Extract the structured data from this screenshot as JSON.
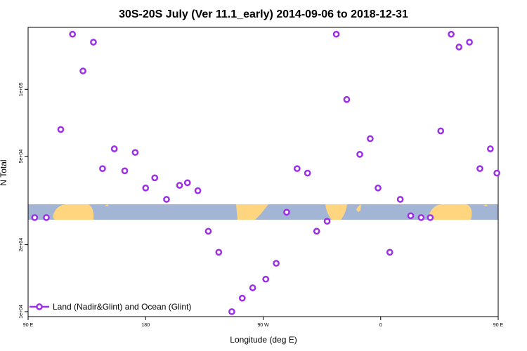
{
  "chart_data": {
    "type": "scatter",
    "title": "30S-20S July (Ver 11.1_early)   2014-09-06 to 2018-12-31",
    "xlabel": "Longitude (deg E)",
    "ylabel": "N Total",
    "x_axis_range": [
      90,
      450
    ],
    "y_scale": "log",
    "ylim": [
      9500,
      190000
    ],
    "x_ticks": [
      {
        "value": 90,
        "label": "90 E"
      },
      {
        "value": 180,
        "label": "180"
      },
      {
        "value": 270,
        "label": "90 W"
      },
      {
        "value": 360,
        "label": "0"
      },
      {
        "value": 450,
        "label": "90 E"
      }
    ],
    "y_ticks": [
      {
        "value": 10000,
        "label": "1e+04"
      },
      {
        "value": 20000,
        "label": "2e+04"
      },
      {
        "value": 50000,
        "label": "5e+04"
      },
      {
        "value": 100000,
        "label": "1e+05"
      }
    ],
    "series": [
      {
        "name": "Land (Nadir&Glint) and Ocean (Glint)",
        "color": "#9B30E8",
        "x": [
          95,
          104,
          115,
          124,
          132,
          140,
          147,
          156,
          164,
          172,
          180,
          187,
          196,
          206,
          212,
          220,
          228,
          236,
          246,
          254,
          262,
          272,
          280,
          288,
          296,
          304,
          311,
          319,
          326,
          334,
          344,
          352,
          358,
          367,
          375,
          383,
          391,
          398,
          406,
          414,
          420,
          428,
          436,
          444,
          449
        ],
        "y": [
          26500,
          26500,
          66000,
          177000,
          121000,
          163000,
          44000,
          54000,
          43000,
          52000,
          36000,
          40000,
          32000,
          37000,
          38000,
          35000,
          23000,
          18500,
          10000,
          11500,
          12800,
          14000,
          16500,
          28000,
          44000,
          42000,
          23000,
          25500,
          177000,
          90000,
          51000,
          60000,
          36000,
          18500,
          32000,
          27000,
          26500,
          26500,
          65000,
          177000,
          155000,
          163000,
          44000,
          54000,
          42000
        ]
      }
    ],
    "legend": {
      "position": "bottom-left",
      "label": "Land (Nadir&Glint) and Ocean (Glint)"
    },
    "land_colors": {
      "ocean": "#A3B5D4",
      "land": "#FFD67F"
    }
  }
}
